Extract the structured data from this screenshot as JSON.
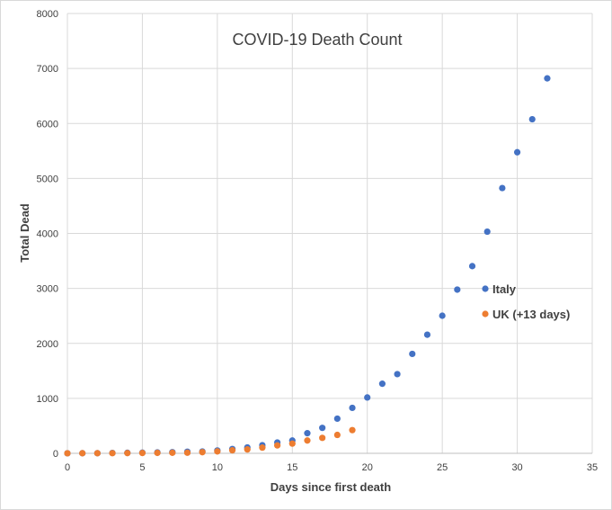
{
  "chart_data": {
    "type": "scatter",
    "title": "COVID-19 Death Count",
    "xlabel": "Days since first death",
    "ylabel": "Total Dead",
    "xlim": [
      0,
      35
    ],
    "ylim": [
      0,
      8000
    ],
    "x_ticks": [
      0,
      5,
      10,
      15,
      20,
      25,
      30,
      35
    ],
    "y_ticks": [
      0,
      1000,
      2000,
      3000,
      4000,
      5000,
      6000,
      7000,
      8000
    ],
    "grid": true,
    "legend_position": "right",
    "series": [
      {
        "name": "Italy",
        "color": "#4472C4",
        "x": [
          0,
          1,
          2,
          3,
          4,
          5,
          6,
          7,
          8,
          9,
          10,
          11,
          12,
          13,
          14,
          15,
          16,
          17,
          18,
          19,
          20,
          21,
          22,
          23,
          24,
          25,
          26,
          27,
          28,
          29,
          30,
          31,
          32
        ],
        "y": [
          1,
          2,
          3,
          7,
          10,
          12,
          17,
          21,
          29,
          34,
          52,
          79,
          107,
          148,
          197,
          233,
          366,
          463,
          631,
          827,
          1016,
          1266,
          1441,
          1809,
          2158,
          2503,
          2978,
          3405,
          4032,
          4825,
          5476,
          6077,
          6820
        ]
      },
      {
        "name": "UK (+13 days)",
        "color": "#ED7D31",
        "x": [
          0,
          1,
          2,
          3,
          4,
          5,
          6,
          7,
          8,
          9,
          10,
          11,
          12,
          13,
          14,
          15,
          16,
          17,
          18,
          19
        ],
        "y": [
          1,
          2,
          2,
          3,
          4,
          6,
          8,
          10,
          11,
          21,
          35,
          55,
          71,
          104,
          144,
          177,
          233,
          281,
          335,
          422
        ]
      }
    ]
  }
}
